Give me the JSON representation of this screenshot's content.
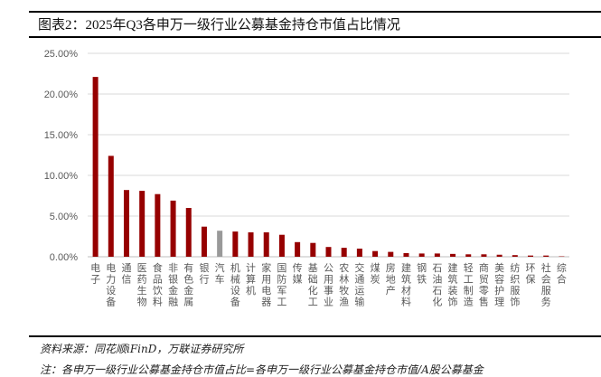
{
  "title": "图表2：2025年Q3各申万一级行业公募基金持仓市值占比情况",
  "source": "资料来源：同花顺iFinD，万联证券研究所",
  "note": "注：各申万一级行业公募基金持仓市值占比=各申万一级行业公募基金持仓市值/A股公募基金",
  "colors": {
    "bar": "#960000",
    "highlight": "#999999",
    "grid": "#d9d9d9"
  },
  "chart_data": {
    "type": "bar",
    "title": "",
    "xlabel": "",
    "ylabel": "",
    "ylim": [
      0,
      25
    ],
    "yticks": [
      "0.00%",
      "5.00%",
      "10.00%",
      "15.00%",
      "20.00%",
      "25.00%"
    ],
    "grid": true,
    "highlight_category": "汽车",
    "categories": [
      "电子",
      "电力设备",
      "通信",
      "医药生物",
      "食品饮料",
      "非银金融",
      "有色金属",
      "银行",
      "汽车",
      "机械设备",
      "计算机",
      "家用电器",
      "国防军工",
      "传媒",
      "基础化工",
      "公用事业",
      "农林牧渔",
      "交通运输",
      "煤炭",
      "房地产",
      "建筑材料",
      "钢铁",
      "石油石化",
      "建筑装饰",
      "轻工制造",
      "商贸零售",
      "美容护理",
      "纺织服饰",
      "环保",
      "社会服务",
      "综合"
    ],
    "values": [
      22.1,
      12.4,
      8.2,
      8.1,
      7.7,
      6.9,
      6.0,
      3.7,
      3.2,
      3.1,
      3.0,
      3.0,
      2.7,
      1.8,
      1.7,
      1.2,
      1.1,
      1.0,
      0.7,
      0.6,
      0.45,
      0.4,
      0.4,
      0.35,
      0.3,
      0.3,
      0.25,
      0.2,
      0.15,
      0.15,
      0.05
    ]
  }
}
